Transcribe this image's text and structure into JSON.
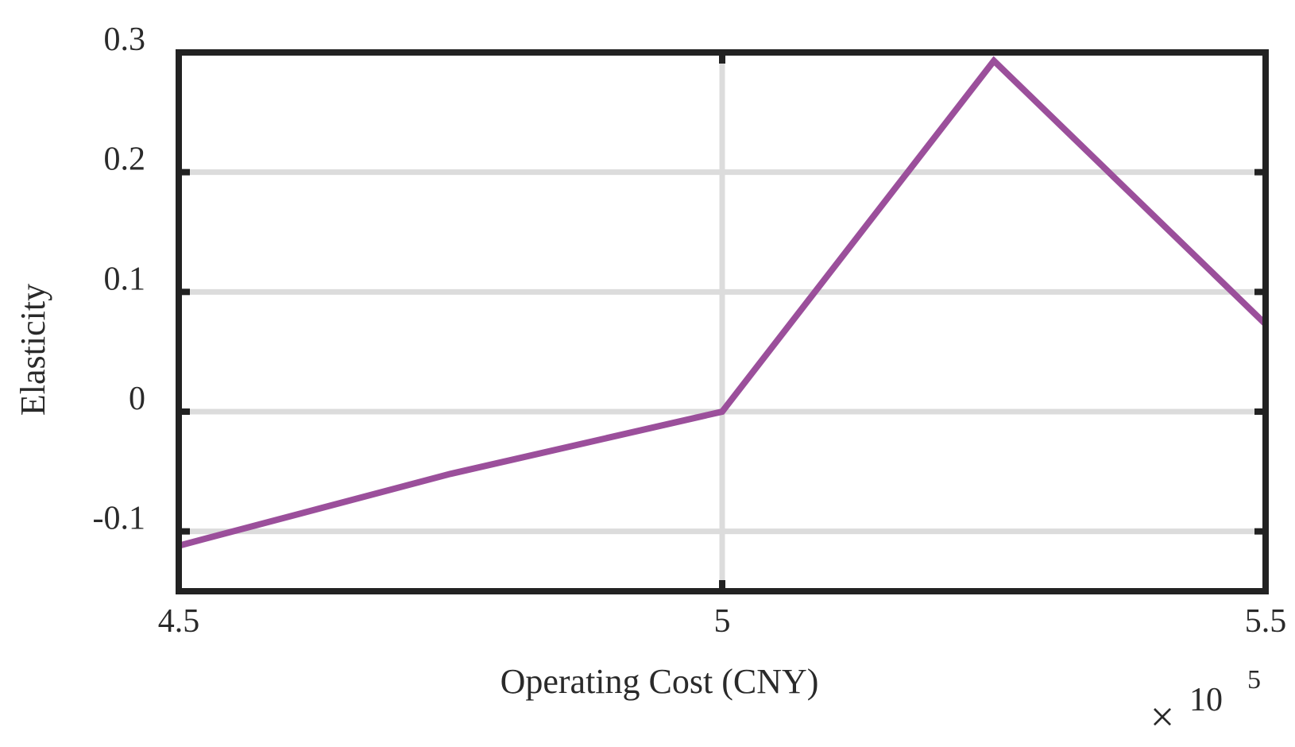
{
  "chart_data": {
    "type": "line",
    "title": "",
    "xlabel": "Operating Cost (CNY)",
    "ylabel": "Elasticity",
    "x_exponent": {
      "times": "×",
      "base": "10",
      "power": "5"
    },
    "xlim": [
      4.5,
      5.5
    ],
    "ylim": [
      -0.15,
      0.3
    ],
    "x_ticks": [
      4.5,
      5,
      5.5
    ],
    "x_tick_labels": [
      "4.5",
      "5",
      "5.5"
    ],
    "y_ticks": [
      -0.1,
      0,
      0.1,
      0.2,
      0.3
    ],
    "y_tick_labels": [
      "-0.1",
      "0",
      "0.1",
      "0.2",
      "0.3"
    ],
    "grid": true,
    "series": [
      {
        "color": "#9b4f9b",
        "x": [
          4.5,
          4.75,
          5.0,
          5.25,
          5.5
        ],
        "y": [
          -0.112,
          -0.052,
          0.0,
          0.293,
          0.073
        ]
      }
    ]
  }
}
